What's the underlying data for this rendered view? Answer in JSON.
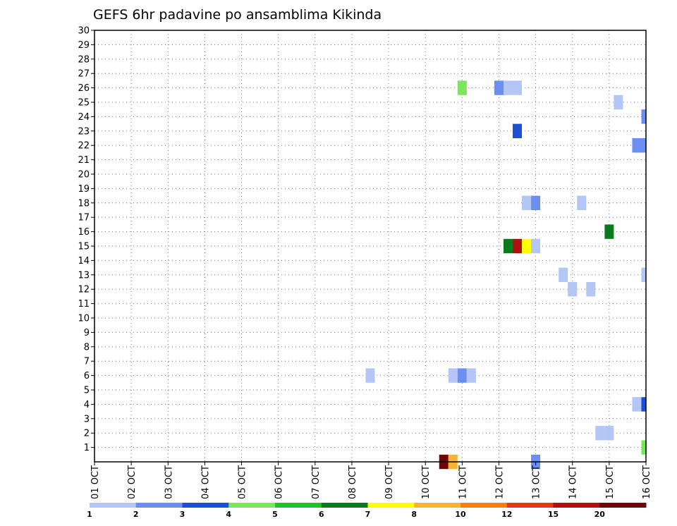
{
  "chart_data": {
    "type": "heatmap",
    "title": "GEFS 6hr padavine po ansamblima Kikinda",
    "x_ticks": [
      "01 OCT",
      "02 OCT",
      "03 OCT",
      "04 OCT",
      "05 OCT",
      "06 OCT",
      "07 OCT",
      "08 OCT",
      "09 OCT",
      "10 OCT",
      "11 OCT",
      "12 OCT",
      "13 OCT",
      "14 OCT",
      "15 OCT",
      "16 OCT"
    ],
    "y_ticks": [
      "1",
      "2",
      "3",
      "4",
      "5",
      "6",
      "7",
      "8",
      "9",
      "10",
      "11",
      "12",
      "13",
      "14",
      "15",
      "16",
      "17",
      "18",
      "19",
      "20",
      "21",
      "22",
      "23",
      "24",
      "25",
      "26",
      "27",
      "28",
      "29",
      "30"
    ],
    "xlim": [
      1,
      16
    ],
    "ylim": [
      0,
      30
    ],
    "grid": true,
    "legend": {
      "placement": "bottom",
      "colors": [
        "#b3c6f5",
        "#6a8ff0",
        "#1a4fd6",
        "#7ae65a",
        "#22c02a",
        "#0a7a1e",
        "#ffff00",
        "#f8b234",
        "#f88012",
        "#e03a14",
        "#b01010",
        "#6e0606"
      ],
      "labels": [
        "1",
        "2",
        "3",
        "4",
        "5",
        "6",
        "7",
        "8",
        "10",
        "12",
        "15",
        "20"
      ]
    },
    "cells": [
      {
        "day": 10.5,
        "member": 0,
        "value": 20
      },
      {
        "day": 10.75,
        "member": 0,
        "value": 8
      },
      {
        "day": 13.0,
        "member": 0,
        "value": 2
      },
      {
        "day": 16.0,
        "member": 1,
        "value": 4
      },
      {
        "day": 14.75,
        "member": 2,
        "value": 1
      },
      {
        "day": 15.0,
        "member": 2,
        "value": 1
      },
      {
        "day": 15.75,
        "member": 4,
        "value": 1
      },
      {
        "day": 16.0,
        "member": 4,
        "value": 3
      },
      {
        "day": 8.5,
        "member": 6,
        "value": 1
      },
      {
        "day": 10.75,
        "member": 6,
        "value": 1
      },
      {
        "day": 11.0,
        "member": 6,
        "value": 2
      },
      {
        "day": 11.25,
        "member": 6,
        "value": 1
      },
      {
        "day": 14.0,
        "member": 12,
        "value": 1
      },
      {
        "day": 14.5,
        "member": 12,
        "value": 1
      },
      {
        "day": 13.75,
        "member": 13,
        "value": 1
      },
      {
        "day": 16.0,
        "member": 13,
        "value": 1
      },
      {
        "day": 12.25,
        "member": 15,
        "value": 6
      },
      {
        "day": 12.5,
        "member": 15,
        "value": 15
      },
      {
        "day": 12.75,
        "member": 15,
        "value": 7
      },
      {
        "day": 13.0,
        "member": 15,
        "value": 1
      },
      {
        "day": 15.0,
        "member": 16,
        "value": 6
      },
      {
        "day": 12.75,
        "member": 18,
        "value": 1
      },
      {
        "day": 13.0,
        "member": 18,
        "value": 2
      },
      {
        "day": 14.25,
        "member": 18,
        "value": 1
      },
      {
        "day": 15.75,
        "member": 22,
        "value": 2
      },
      {
        "day": 16.0,
        "member": 22,
        "value": 2
      },
      {
        "day": 12.5,
        "member": 23,
        "value": 3
      },
      {
        "day": 16.0,
        "member": 24,
        "value": 2
      },
      {
        "day": 15.25,
        "member": 25,
        "value": 1
      },
      {
        "day": 11.0,
        "member": 26,
        "value": 4
      },
      {
        "day": 12.0,
        "member": 26,
        "value": 2
      },
      {
        "day": 12.25,
        "member": 26,
        "value": 1
      },
      {
        "day": 12.5,
        "member": 26,
        "value": 1
      }
    ]
  }
}
